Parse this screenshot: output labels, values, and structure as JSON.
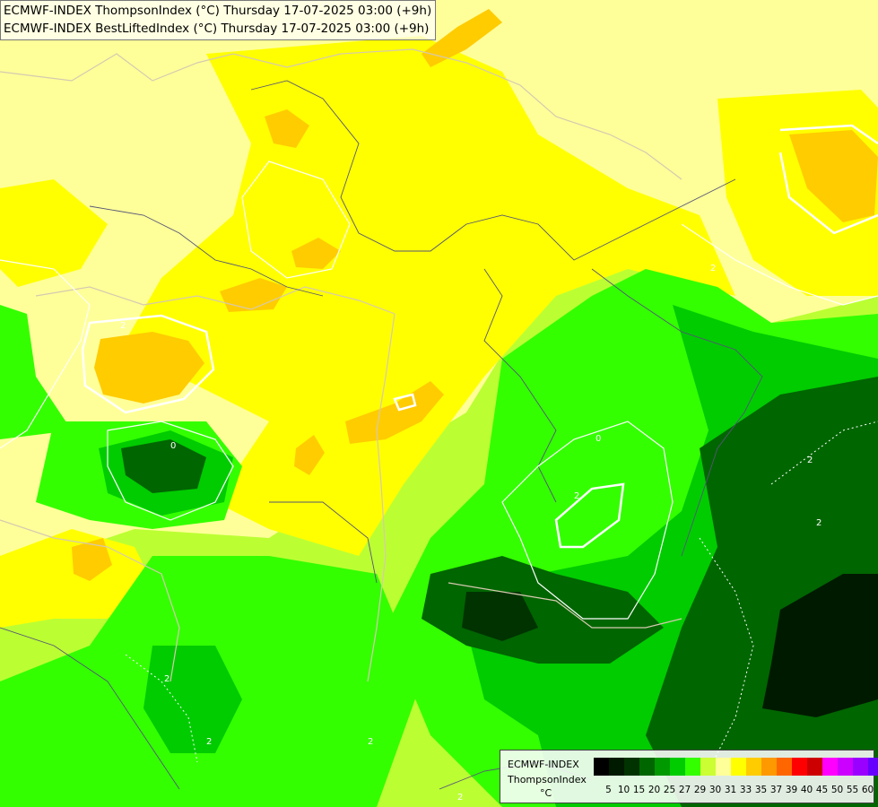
{
  "title": {
    "line1": "ECMWF-INDEX ThompsonIndex (°C) Thursday 17-07-2025 03:00 (+9h)",
    "line2": "ECMWF-INDEX BestLiftedIndex (°C) Thursday 17-07-2025 03:00 (+9h)"
  },
  "legend": {
    "line1": "ECMWF-INDEX",
    "line2": "ThompsonIndex",
    "unit": "°C",
    "colors": [
      "#000000",
      "#001a00",
      "#003300",
      "#006600",
      "#009900",
      "#00cc00",
      "#33ff00",
      "#ccff33",
      "#ffff99",
      "#ffff00",
      "#ffcc00",
      "#ff9900",
      "#ff6600",
      "#ff0000",
      "#cc0000",
      "#ff00ff",
      "#cc00ff",
      "#9900ff",
      "#6600ff",
      "#0000ff"
    ],
    "labels": [
      "5",
      "10",
      "15",
      "20",
      "25",
      "27",
      "29",
      "30",
      "31",
      "33",
      "35",
      "37",
      "39",
      "40",
      "45",
      "50",
      "55",
      "60"
    ]
  },
  "contour_labels": [
    "2",
    "2",
    "2",
    "2",
    "0",
    "2",
    "2",
    "0",
    "2",
    "2",
    "2"
  ]
}
